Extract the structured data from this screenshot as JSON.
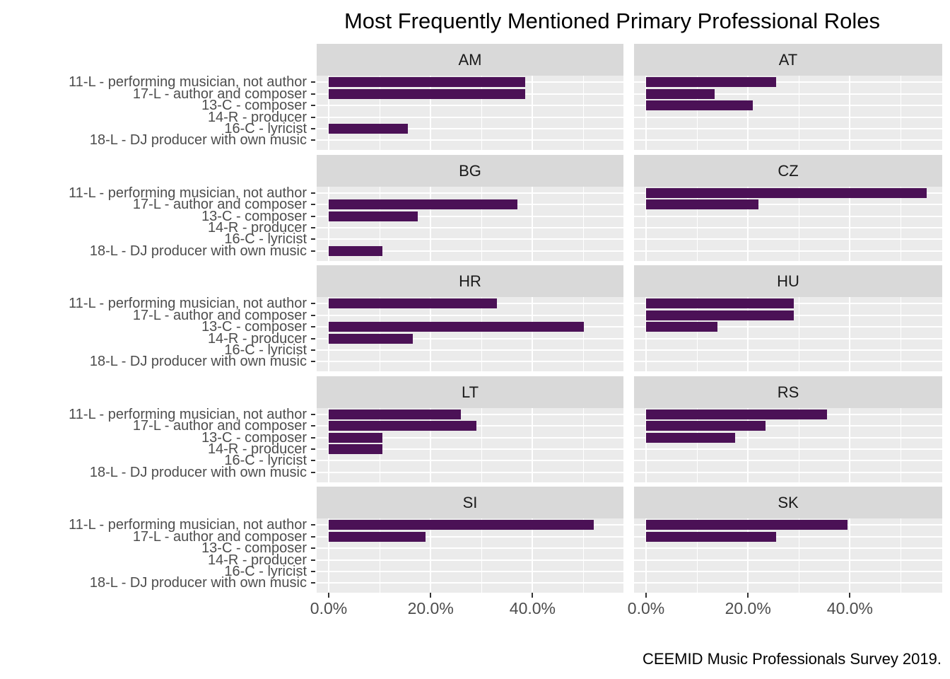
{
  "title": "Most Frequently Mentioned Primary Professional Roles",
  "caption": "CEEMID Music Professionals Survey 2019.",
  "colors": {
    "bar": "#4b1156",
    "panel_background": "#ebebeb",
    "strip_background": "#d9d9d9",
    "gridline": "#ffffff",
    "axis_text": "#4d4d4d",
    "strip_text": "#1a1a1a",
    "title_text": "#000000"
  },
  "chart_data": {
    "type": "bar",
    "orientation": "horizontal",
    "title": "Most Frequently Mentioned Primary Professional Roles",
    "caption": "CEEMID Music Professionals Survey 2019.",
    "xlabel": "",
    "ylabel": "",
    "grid": true,
    "legend": "none",
    "facet_layout": {
      "rows": 5,
      "cols": 2
    },
    "categories": [
      "11-L - performing musician, not author",
      "17-L - author and composer",
      "13-C - composer",
      "14-R - producer",
      "16-C - lyricist",
      "18-L - DJ producer with own music"
    ],
    "x_tick_labels": [
      "0.0%",
      "20.0%",
      "40.0%"
    ],
    "x_tick_values": [
      0,
      20,
      40
    ],
    "x_minor_values": [
      10,
      30,
      50
    ],
    "xlim": [
      0,
      57.8
    ],
    "unit": "percent",
    "facets": [
      {
        "label": "AM",
        "values": [
          38.5,
          38.5,
          0,
          0,
          15.5,
          0
        ]
      },
      {
        "label": "AT",
        "values": [
          25.5,
          13.5,
          21,
          0,
          0,
          0
        ]
      },
      {
        "label": "BG",
        "values": [
          0,
          37,
          17.5,
          0,
          0,
          10.5
        ]
      },
      {
        "label": "CZ",
        "values": [
          55,
          22,
          0,
          0,
          0,
          0
        ]
      },
      {
        "label": "HR",
        "values": [
          33,
          0,
          50,
          16.5,
          0,
          0
        ]
      },
      {
        "label": "HU",
        "values": [
          29,
          29,
          14,
          0,
          0,
          0
        ]
      },
      {
        "label": "LT",
        "values": [
          26,
          29,
          10.5,
          10.5,
          0,
          0
        ]
      },
      {
        "label": "RS",
        "values": [
          35.5,
          23.5,
          17.5,
          0,
          0,
          0
        ]
      },
      {
        "label": "SI",
        "values": [
          52,
          19,
          0,
          0,
          0,
          0
        ]
      },
      {
        "label": "SK",
        "values": [
          39.5,
          25.5,
          0,
          0,
          0,
          0
        ]
      }
    ]
  }
}
